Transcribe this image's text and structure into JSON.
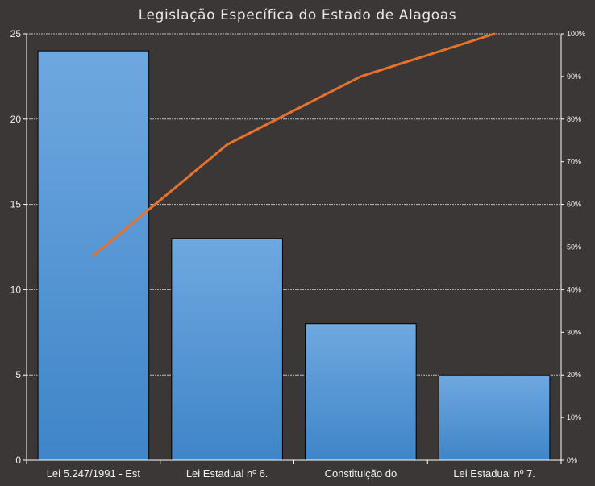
{
  "chart_data": {
    "type": "bar",
    "title": "Legislação Específica do Estado de Alagoas",
    "categories": [
      "Lei 5.247/1991  - Est",
      "Lei Estadual nº 6.",
      "Constituição do",
      "Lei Estadual nº 7."
    ],
    "series": [
      {
        "kind": "bar",
        "values": [
          24,
          13,
          8,
          5
        ]
      },
      {
        "kind": "line",
        "axis": "secondary",
        "values": [
          48,
          74,
          90,
          100
        ]
      }
    ],
    "ylim": [
      0,
      25
    ],
    "yticks": [
      "0",
      "5",
      "10",
      "15",
      "20",
      "25"
    ],
    "y2lim": [
      0,
      100
    ],
    "y2ticks": [
      "0%",
      "10%",
      "20%",
      "30%",
      "40%",
      "50%",
      "60%",
      "70%",
      "80%",
      "90%",
      "100%"
    ],
    "xlabel": "",
    "ylabel": "",
    "grid": true,
    "legend": "none",
    "colors": {
      "background": "#3a3736",
      "bar_top": "#6fa8e0",
      "bar_bottom": "#3f85c8",
      "bar_edge": "#000000",
      "line": "#e8722c",
      "grid": "#bdbdbd",
      "text": "#f0f0f0"
    }
  }
}
